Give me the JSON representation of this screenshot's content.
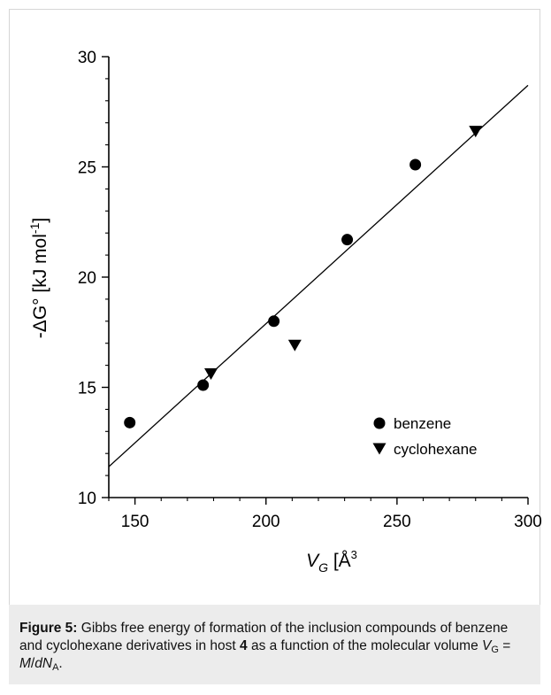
{
  "chart_data": {
    "type": "scatter",
    "xlim": [
      140,
      300
    ],
    "ylim": [
      10,
      30
    ],
    "x_ticks": [
      "150",
      "200",
      "250",
      "300"
    ],
    "y_ticks": [
      "10",
      "15",
      "20",
      "25",
      "30"
    ],
    "xlabel": {
      "main": "V",
      "sub": "G",
      "bracket_open": " [",
      "unit": "Å",
      "sup": "3",
      "bracket_close": "]"
    },
    "ylabel": {
      "text": "-ΔG° [kJ mol",
      "sup": "-1",
      "close": "]"
    },
    "series": [
      {
        "name": "benzene",
        "marker": "circle",
        "points": [
          [
            148,
            13.4
          ],
          [
            176,
            15.1
          ],
          [
            203,
            18.0
          ],
          [
            231,
            21.7
          ],
          [
            257,
            25.1
          ]
        ]
      },
      {
        "name": "cyclohexane",
        "marker": "triangle-down",
        "points": [
          [
            179,
            15.6
          ],
          [
            211,
            16.9
          ],
          [
            280,
            26.6
          ]
        ]
      }
    ],
    "fit_line": {
      "x": [
        140,
        300
      ],
      "y": [
        11.4,
        28.7
      ]
    },
    "legend_position": "lower-right",
    "grid": false
  },
  "caption": {
    "label": "Figure 5:",
    "text1": " Gibbs free energy of formation of the inclusion compounds of benzene and cyclohexane derivatives in host ",
    "host": "4",
    "text2": " as a function of the molecular volume ",
    "var": "V",
    "var_sub": "G",
    "text3": " = ",
    "M": "M",
    "slash": "/",
    "d": "d",
    "N": "N",
    "N_sub": "A",
    "end": "."
  }
}
